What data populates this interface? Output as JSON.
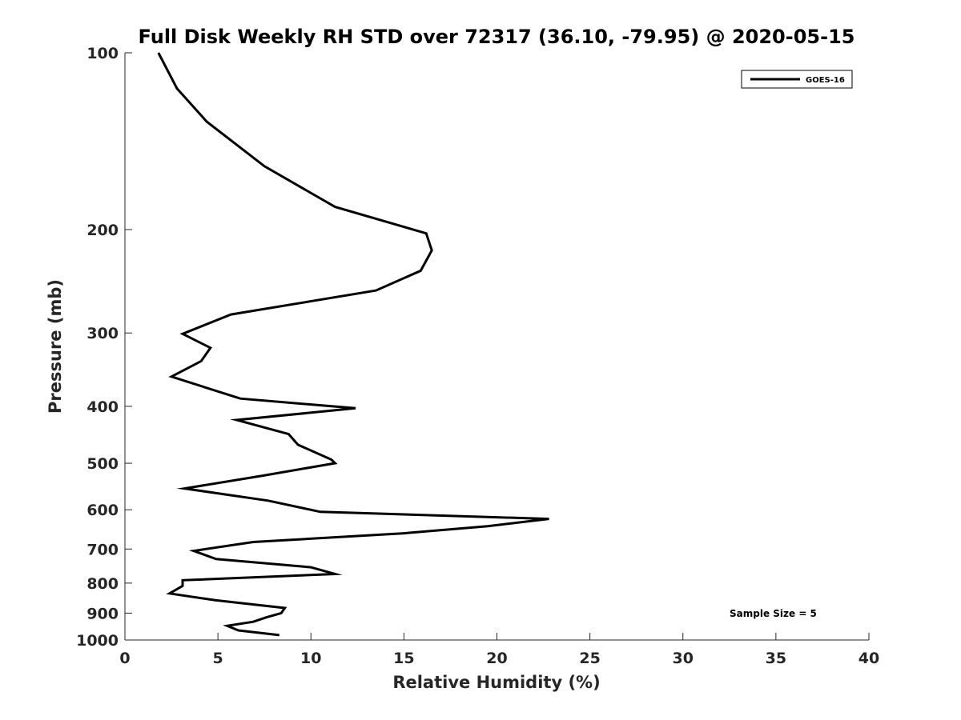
{
  "chart_data": {
    "type": "line",
    "title": "Full Disk Weekly RH STD over 72317 (36.10, -79.95) @ 2020-05-15",
    "xlabel": "Relative Humidity (%)",
    "ylabel": "Pressure (mb)",
    "xlim": [
      0,
      40
    ],
    "ylim": [
      100,
      1000
    ],
    "y_scale": "log",
    "y_reversed": true,
    "x_ticks": [
      0,
      5,
      10,
      15,
      20,
      25,
      30,
      35,
      40
    ],
    "y_ticks": [
      100,
      200,
      300,
      400,
      500,
      600,
      700,
      800,
      900,
      1000
    ],
    "grid": false,
    "legend_position": "top-right",
    "annotation": "Sample Size = 5",
    "series": [
      {
        "name": "GOES-16",
        "color": "#000000",
        "x": [
          1.8,
          2.8,
          4.4,
          7.5,
          11.3,
          16.2,
          16.5,
          15.9,
          13.5,
          5.7,
          3.1,
          4.6,
          4.1,
          2.5,
          6.2,
          12.4,
          6.0,
          8.8,
          9.3,
          11.1,
          11.3,
          7.4,
          3.2,
          7.7,
          10.5,
          22.8,
          19.5,
          15.0,
          6.9,
          3.7,
          4.9,
          10.0,
          11.3,
          3.1,
          3.1,
          2.4,
          4.9,
          8.6,
          8.4,
          7.6,
          6.9,
          5.5,
          6.1,
          8.3
        ],
        "y": [
          100,
          115,
          131,
          156,
          183,
          203,
          217,
          235,
          254,
          279,
          301,
          318,
          335,
          356,
          388,
          403,
          422,
          446,
          465,
          493,
          500,
          525,
          552,
          579,
          605,
          622,
          640,
          658,
          681,
          705,
          728,
          752,
          772,
          791,
          809,
          833,
          856,
          882,
          900,
          915,
          931,
          946,
          963,
          981
        ]
      }
    ]
  }
}
